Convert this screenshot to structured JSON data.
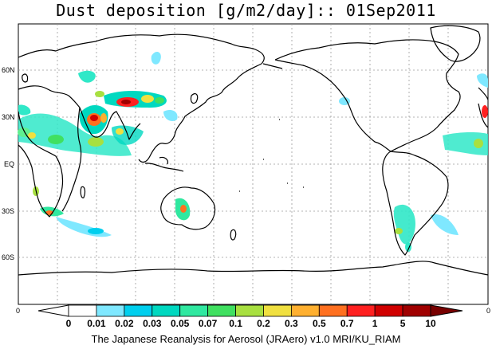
{
  "title": "Dust deposition [g/m2/day]:: 01Sep2011",
  "footer": "The Japanese Reanalysis for Aerosol (JRAero) v1.0 MRI/KU_RIAM",
  "lat_labels": [
    "60N",
    "30N",
    "EQ",
    "30S",
    "60S"
  ],
  "lon_edge_labels": [
    "0",
    "0"
  ],
  "colorbar": {
    "labels": [
      "0",
      "0.01",
      "0.02",
      "0.03",
      "0.05",
      "0.07",
      "0.1",
      "0.2",
      "0.3",
      "0.5",
      "0.7",
      "1",
      "5",
      "10"
    ],
    "colors": [
      "#ffffff",
      "#ffffff",
      "#7fe8ff",
      "#00cfee",
      "#00d8c0",
      "#30e8a0",
      "#40e060",
      "#a8e040",
      "#f0e040",
      "#ffb030",
      "#ff7020",
      "#ff2020",
      "#d00000",
      "#a00000",
      "#780000"
    ]
  }
}
